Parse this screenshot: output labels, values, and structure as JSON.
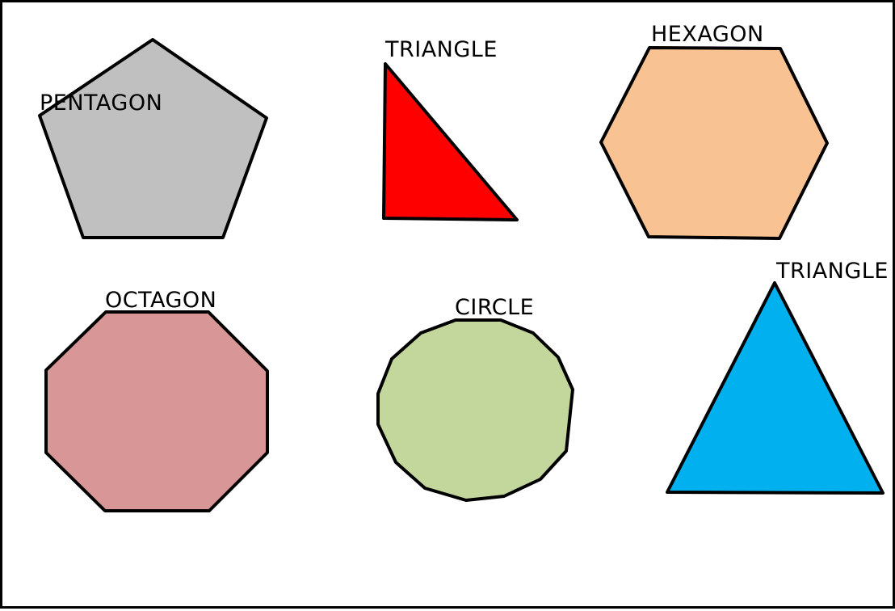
{
  "shapes": [
    {
      "label": "PENTAGON",
      "fill": "#c0c0c0"
    },
    {
      "label": "TRIANGLE",
      "fill": "#ff0000"
    },
    {
      "label": "HEXAGON",
      "fill": "#f8c293"
    },
    {
      "label": "OCTAGON",
      "fill": "#d99696"
    },
    {
      "label": "CIRCLE",
      "fill": "#c3d69b"
    },
    {
      "label": "TRIANGLE",
      "fill": "#00b0ef"
    }
  ]
}
